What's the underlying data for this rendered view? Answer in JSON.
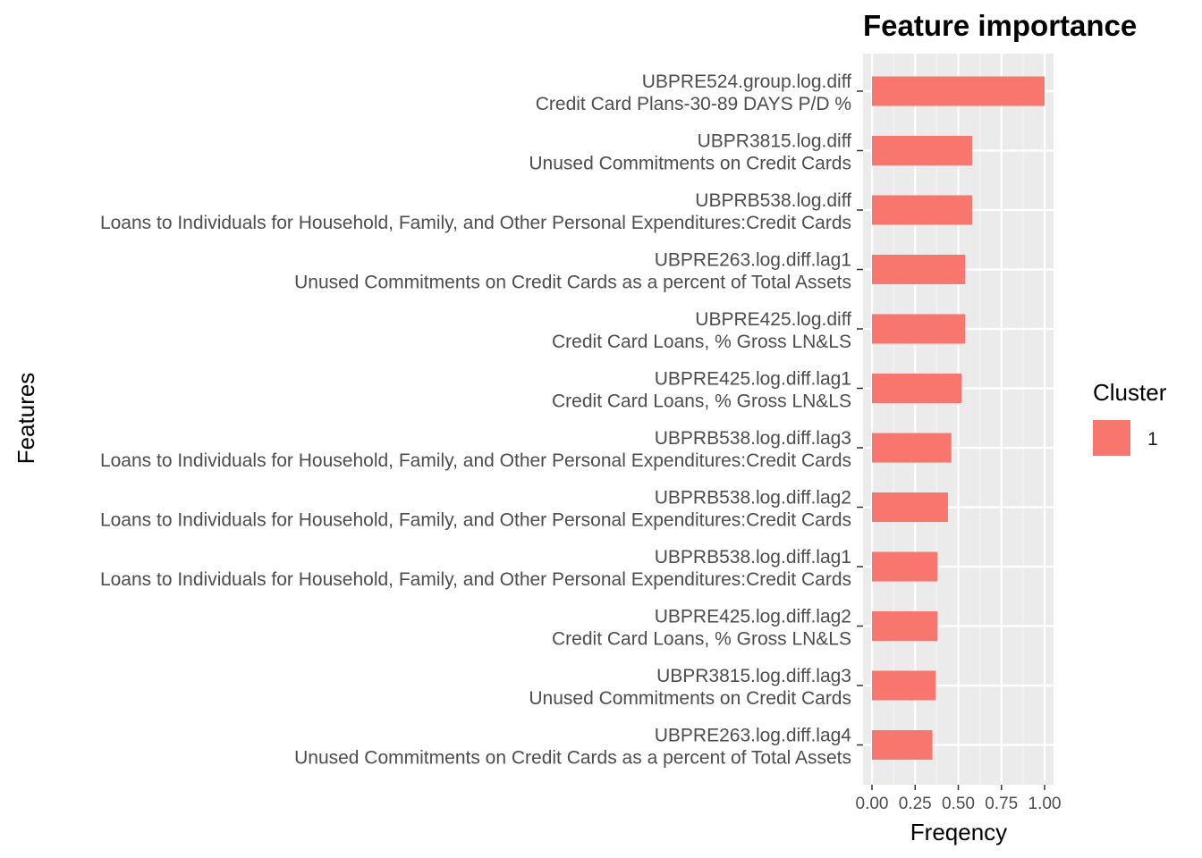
{
  "colors": {
    "bar": "#F8766D",
    "panel": "#EBEBEB",
    "grid_major": "#FFFFFF",
    "grid_minor": "#F5F5F5",
    "tick": "#333333"
  },
  "chart_data": {
    "type": "bar",
    "orientation": "horizontal",
    "title": "Feature importance",
    "xlabel": "Freqency",
    "ylabel": "Features",
    "xlim": [
      0,
      1
    ],
    "xticks": [
      "0.00",
      "0.25",
      "0.50",
      "0.75",
      "1.00"
    ],
    "xtick_values": [
      0,
      0.25,
      0.5,
      0.75,
      1.0
    ],
    "grid": true,
    "legend": {
      "title": "Cluster",
      "position": "right",
      "entries": [
        "1"
      ]
    },
    "categories": [
      {
        "code": "UBPRE524.group.log.diff",
        "desc": "Credit Card Plans-30-89 DAYS P/D %"
      },
      {
        "code": "UBPR3815.log.diff",
        "desc": "Unused Commitments on Credit Cards"
      },
      {
        "code": "UBPRB538.log.diff",
        "desc": "Loans to Individuals for Household, Family, and Other Personal Expenditures:Credit Cards"
      },
      {
        "code": "UBPRE263.log.diff.lag1",
        "desc": "Unused Commitments on Credit Cards as a percent of Total Assets"
      },
      {
        "code": "UBPRE425.log.diff",
        "desc": "Credit Card Loans, % Gross LN&LS"
      },
      {
        "code": "UBPRE425.log.diff.lag1",
        "desc": "Credit Card Loans, % Gross LN&LS"
      },
      {
        "code": "UBPRB538.log.diff.lag3",
        "desc": "Loans to Individuals for Household, Family, and Other Personal Expenditures:Credit Cards"
      },
      {
        "code": "UBPRB538.log.diff.lag2",
        "desc": "Loans to Individuals for Household, Family, and Other Personal Expenditures:Credit Cards"
      },
      {
        "code": "UBPRB538.log.diff.lag1",
        "desc": "Loans to Individuals for Household, Family, and Other Personal Expenditures:Credit Cards"
      },
      {
        "code": "UBPRE425.log.diff.lag2",
        "desc": "Credit Card Loans, % Gross LN&LS"
      },
      {
        "code": "UBPR3815.log.diff.lag3",
        "desc": "Unused Commitments on Credit Cards"
      },
      {
        "code": "UBPRE263.log.diff.lag4",
        "desc": "Unused Commitments on Credit Cards as a percent of Total Assets"
      }
    ],
    "series": [
      {
        "name": "1",
        "values": [
          1.0,
          0.58,
          0.58,
          0.54,
          0.54,
          0.52,
          0.46,
          0.44,
          0.38,
          0.38,
          0.37,
          0.35
        ]
      }
    ]
  }
}
